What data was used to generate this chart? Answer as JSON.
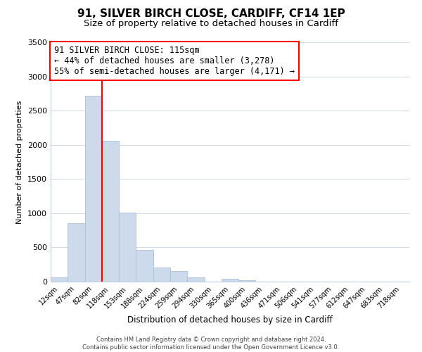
{
  "title": "91, SILVER BIRCH CLOSE, CARDIFF, CF14 1EP",
  "subtitle": "Size of property relative to detached houses in Cardiff",
  "xlabel": "Distribution of detached houses by size in Cardiff",
  "ylabel": "Number of detached properties",
  "footer_line1": "Contains HM Land Registry data © Crown copyright and database right 2024.",
  "footer_line2": "Contains public sector information licensed under the Open Government Licence v3.0.",
  "bin_labels": [
    "12sqm",
    "47sqm",
    "82sqm",
    "118sqm",
    "153sqm",
    "188sqm",
    "224sqm",
    "259sqm",
    "294sqm",
    "330sqm",
    "365sqm",
    "400sqm",
    "436sqm",
    "471sqm",
    "506sqm",
    "541sqm",
    "577sqm",
    "612sqm",
    "647sqm",
    "683sqm",
    "718sqm"
  ],
  "bar_heights": [
    60,
    850,
    2720,
    2060,
    1010,
    460,
    210,
    150,
    60,
    0,
    45,
    20,
    0,
    0,
    0,
    0,
    0,
    0,
    0,
    0,
    0
  ],
  "bar_color": "#ccdaeb",
  "bar_edgecolor": "#aabfd8",
  "vline_color": "red",
  "vline_position": 2.5,
  "annotation_title": "91 SILVER BIRCH CLOSE: 115sqm",
  "annotation_line1": "← 44% of detached houses are smaller (3,278)",
  "annotation_line2": "55% of semi-detached houses are larger (4,171) →",
  "annotation_box_edgecolor": "red",
  "ylim": [
    0,
    3500
  ],
  "yticks": [
    0,
    500,
    1000,
    1500,
    2000,
    2500,
    3000,
    3500
  ],
  "title_fontsize": 11,
  "subtitle_fontsize": 9.5,
  "annotation_fontsize": 8.5,
  "grid_color": "#d0dce8",
  "background_color": "#ffffff"
}
